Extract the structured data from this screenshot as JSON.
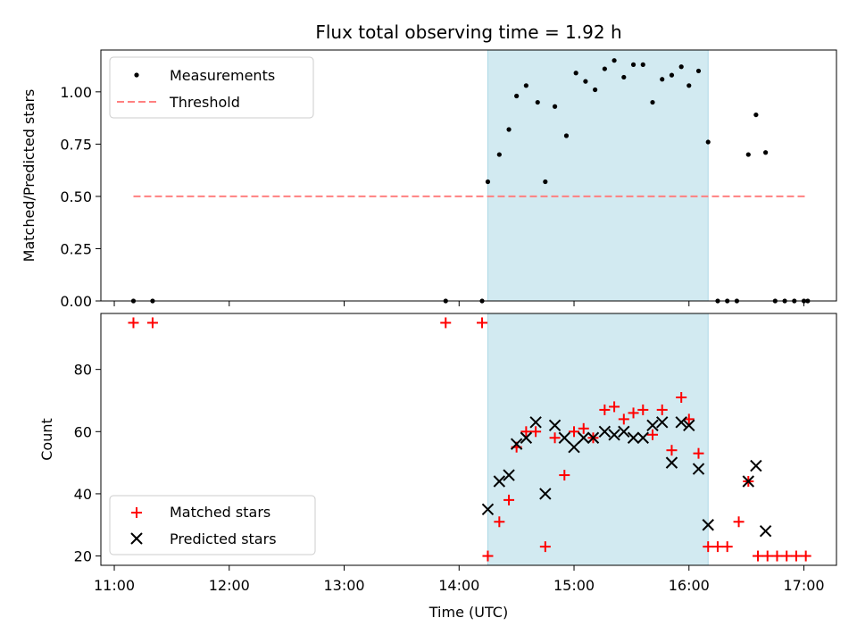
{
  "chart_data": {
    "title": "Flux total observing time = 1.92 h",
    "xlabel": "Time (UTC)",
    "x_tick_labels": [
      "11:00",
      "12:00",
      "13:00",
      "14:00",
      "15:00",
      "16:00",
      "17:00"
    ],
    "x_ticks": [
      "11:00",
      "12:00",
      "13:00",
      "14:00",
      "15:00",
      "16:00",
      "17:00"
    ],
    "xlim": [
      "10:53",
      "17:17"
    ],
    "highlight_span": [
      "14:15",
      "16:10"
    ],
    "colors": {
      "highlight": "#add8e6",
      "measurements": "#000000",
      "threshold": "#ff8080",
      "matched": "#ff0000",
      "predicted": "#000000"
    },
    "panels": [
      {
        "type": "scatter",
        "ylabel": "Matched/Predicted stars",
        "ylim": [
          0,
          1.2
        ],
        "y_ticks": [
          0,
          0.25,
          0.5,
          0.75,
          1.0
        ],
        "y_tick_labels": [
          "0.00",
          "0.25",
          "0.50",
          "0.75",
          "1.00"
        ],
        "legend_position": "upper-left",
        "series": [
          {
            "name": "Measurements",
            "marker": "dot",
            "points": [
              [
                "11:10",
                0
              ],
              [
                "11:20",
                0
              ],
              [
                "13:53",
                0
              ],
              [
                "14:12",
                0
              ],
              [
                "14:15",
                0.57
              ],
              [
                "14:21",
                0.7
              ],
              [
                "14:26",
                0.82
              ],
              [
                "14:30",
                0.98
              ],
              [
                "14:35",
                1.03
              ],
              [
                "14:41",
                0.95
              ],
              [
                "14:45",
                0.57
              ],
              [
                "14:50",
                0.93
              ],
              [
                "14:56",
                0.79
              ],
              [
                "15:01",
                1.09
              ],
              [
                "15:06",
                1.05
              ],
              [
                "15:11",
                1.01
              ],
              [
                "15:16",
                1.11
              ],
              [
                "15:21",
                1.15
              ],
              [
                "15:26",
                1.07
              ],
              [
                "15:31",
                1.13
              ],
              [
                "15:36",
                1.13
              ],
              [
                "15:41",
                0.95
              ],
              [
                "15:46",
                1.06
              ],
              [
                "15:51",
                1.08
              ],
              [
                "15:56",
                1.12
              ],
              [
                "16:00",
                1.03
              ],
              [
                "16:05",
                1.1
              ],
              [
                "16:10",
                0.76
              ],
              [
                "16:15",
                0
              ],
              [
                "16:20",
                0
              ],
              [
                "16:25",
                0
              ],
              [
                "16:31",
                0.7
              ],
              [
                "16:35",
                0.89
              ],
              [
                "16:40",
                0.71
              ],
              [
                "16:45",
                0
              ],
              [
                "16:50",
                0
              ],
              [
                "16:55",
                0
              ],
              [
                "17:00",
                0
              ],
              [
                "17:02",
                0
              ]
            ]
          },
          {
            "name": "Threshold",
            "marker": "dashed-line",
            "points": [
              [
                "11:10",
                0.5
              ],
              [
                "17:01",
                0.5
              ]
            ]
          }
        ]
      },
      {
        "type": "scatter",
        "ylabel": "Count",
        "ylim": [
          17,
          98
        ],
        "y_ticks": [
          20,
          40,
          60,
          80
        ],
        "y_tick_labels": [
          "20",
          "40",
          "60",
          "80"
        ],
        "legend_position": "lower-left",
        "series": [
          {
            "name": "Matched stars",
            "marker": "plus",
            "points": [
              [
                "11:10",
                95
              ],
              [
                "11:20",
                95
              ],
              [
                "13:53",
                95
              ],
              [
                "14:12",
                95
              ],
              [
                "14:15",
                20
              ],
              [
                "14:21",
                31
              ],
              [
                "14:26",
                38
              ],
              [
                "14:30",
                55
              ],
              [
                "14:35",
                60
              ],
              [
                "14:40",
                60
              ],
              [
                "14:45",
                23
              ],
              [
                "14:50",
                58
              ],
              [
                "14:55",
                46
              ],
              [
                "15:00",
                60
              ],
              [
                "15:05",
                61
              ],
              [
                "15:10",
                58
              ],
              [
                "15:16",
                67
              ],
              [
                "15:21",
                68
              ],
              [
                "15:26",
                64
              ],
              [
                "15:31",
                66
              ],
              [
                "15:36",
                67
              ],
              [
                "15:41",
                59
              ],
              [
                "15:46",
                67
              ],
              [
                "15:51",
                54
              ],
              [
                "15:56",
                71
              ],
              [
                "16:00",
                64
              ],
              [
                "16:05",
                53
              ],
              [
                "16:10",
                23
              ],
              [
                "16:15",
                23
              ],
              [
                "16:20",
                23
              ],
              [
                "16:26",
                31
              ],
              [
                "16:31",
                44
              ],
              [
                "16:36",
                20
              ],
              [
                "16:41",
                20
              ],
              [
                "16:46",
                20
              ],
              [
                "16:51",
                20
              ],
              [
                "16:56",
                20
              ],
              [
                "17:01",
                20
              ]
            ]
          },
          {
            "name": "Predicted stars",
            "marker": "x",
            "points": [
              [
                "14:15",
                35
              ],
              [
                "14:21",
                44
              ],
              [
                "14:26",
                46
              ],
              [
                "14:30",
                56
              ],
              [
                "14:35",
                58
              ],
              [
                "14:40",
                63
              ],
              [
                "14:45",
                40
              ],
              [
                "14:50",
                62
              ],
              [
                "14:55",
                58
              ],
              [
                "15:00",
                55
              ],
              [
                "15:05",
                58
              ],
              [
                "15:10",
                58
              ],
              [
                "15:16",
                60
              ],
              [
                "15:21",
                59
              ],
              [
                "15:26",
                60
              ],
              [
                "15:31",
                58
              ],
              [
                "15:36",
                58
              ],
              [
                "15:41",
                62
              ],
              [
                "15:46",
                63
              ],
              [
                "15:51",
                50
              ],
              [
                "15:56",
                63
              ],
              [
                "16:00",
                62
              ],
              [
                "16:05",
                48
              ],
              [
                "16:10",
                30
              ],
              [
                "16:31",
                44
              ],
              [
                "16:35",
                49
              ],
              [
                "16:40",
                28
              ]
            ]
          }
        ]
      }
    ]
  }
}
